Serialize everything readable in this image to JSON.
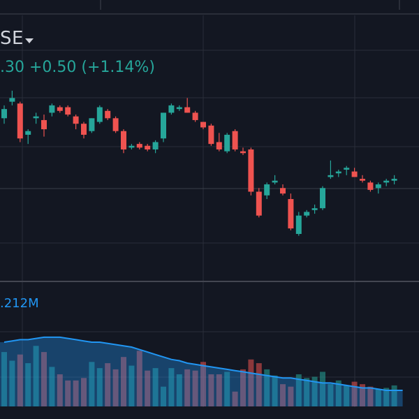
{
  "header": {
    "symbol_partial": "SE",
    "last_price_partial": ".30",
    "change": "+0.50",
    "change_pct": "(+1.14%)"
  },
  "volume": {
    "ma_value_partial": ".212M"
  },
  "colors": {
    "background": "#131722",
    "up": "#26a69a",
    "down": "#ef5350",
    "grid": "#2a2e39",
    "volume_ma": "#2196f3",
    "text": "#d1d4dc"
  },
  "chart_data": {
    "type": "candlestick",
    "price_ylim": [
      0,
      100
    ],
    "volume_ylim": [
      0,
      100
    ],
    "candles": [
      {
        "o": 63,
        "h": 70,
        "l": 60,
        "c": 68
      },
      {
        "o": 72,
        "h": 78,
        "l": 70,
        "c": 74
      },
      {
        "o": 71,
        "h": 72,
        "l": 50,
        "c": 52
      },
      {
        "o": 54,
        "h": 57,
        "l": 49,
        "c": 56
      },
      {
        "o": 63,
        "h": 66,
        "l": 60,
        "c": 64
      },
      {
        "o": 62,
        "h": 65,
        "l": 53,
        "c": 57
      },
      {
        "o": 66,
        "h": 71,
        "l": 64,
        "c": 70
      },
      {
        "o": 69,
        "h": 70,
        "l": 66,
        "c": 67
      },
      {
        "o": 69,
        "h": 70,
        "l": 64,
        "c": 65
      },
      {
        "o": 64,
        "h": 65,
        "l": 57,
        "c": 60
      },
      {
        "o": 60,
        "h": 61,
        "l": 52,
        "c": 54
      },
      {
        "o": 56,
        "h": 63,
        "l": 55,
        "c": 63
      },
      {
        "o": 61,
        "h": 70,
        "l": 60,
        "c": 69
      },
      {
        "o": 67,
        "h": 68,
        "l": 62,
        "c": 63
      },
      {
        "o": 63,
        "h": 64,
        "l": 55,
        "c": 56
      },
      {
        "o": 56,
        "h": 57,
        "l": 44,
        "c": 46
      },
      {
        "o": 47,
        "h": 49,
        "l": 46,
        "c": 48
      },
      {
        "o": 49,
        "h": 50,
        "l": 46,
        "c": 47
      },
      {
        "o": 48,
        "h": 49,
        "l": 45,
        "c": 46
      },
      {
        "o": 46,
        "h": 51,
        "l": 44,
        "c": 50
      },
      {
        "o": 52,
        "h": 66,
        "l": 50,
        "c": 66
      },
      {
        "o": 66,
        "h": 71,
        "l": 65,
        "c": 70
      },
      {
        "o": 68,
        "h": 70,
        "l": 67,
        "c": 69
      },
      {
        "o": 69,
        "h": 74,
        "l": 66,
        "c": 66
      },
      {
        "o": 66,
        "h": 67,
        "l": 61,
        "c": 62
      },
      {
        "o": 61,
        "h": 61,
        "l": 57,
        "c": 58
      },
      {
        "o": 59,
        "h": 60,
        "l": 48,
        "c": 49
      },
      {
        "o": 50,
        "h": 55,
        "l": 45,
        "c": 46
      },
      {
        "o": 45,
        "h": 55,
        "l": 44,
        "c": 54
      },
      {
        "o": 56,
        "h": 57,
        "l": 45,
        "c": 46
      },
      {
        "o": 45,
        "h": 47,
        "l": 43,
        "c": 44
      },
      {
        "o": 46,
        "h": 47,
        "l": 21,
        "c": 23
      },
      {
        "o": 23,
        "h": 25,
        "l": 9,
        "c": 10
      },
      {
        "o": 21,
        "h": 28,
        "l": 19,
        "c": 27
      },
      {
        "o": 28,
        "h": 32,
        "l": 27,
        "c": 29
      },
      {
        "o": 25,
        "h": 27,
        "l": 21,
        "c": 22
      },
      {
        "o": 19,
        "h": 22,
        "l": 2,
        "c": 3
      },
      {
        "o": 0,
        "h": 12,
        "l": -1,
        "c": 10
      },
      {
        "o": 10,
        "h": 13,
        "l": 9,
        "c": 12
      },
      {
        "o": 13,
        "h": 16,
        "l": 11,
        "c": 14
      },
      {
        "o": 14,
        "h": 26,
        "l": 13,
        "c": 25
      },
      {
        "o": 31,
        "h": 40,
        "l": 30,
        "c": 32
      },
      {
        "o": 33,
        "h": 35,
        "l": 31,
        "c": 34
      },
      {
        "o": 35,
        "h": 37,
        "l": 32,
        "c": 36
      },
      {
        "o": 34,
        "h": 36,
        "l": 31,
        "c": 31
      },
      {
        "o": 30,
        "h": 32,
        "l": 28,
        "c": 29
      },
      {
        "o": 28,
        "h": 29,
        "l": 23,
        "c": 24
      },
      {
        "o": 25,
        "h": 28,
        "l": 22,
        "c": 27
      },
      {
        "o": 28,
        "h": 30,
        "l": 26,
        "c": 29
      },
      {
        "o": 29,
        "h": 32,
        "l": 27,
        "c": 30
      }
    ],
    "volumes": [
      44,
      37,
      42,
      35,
      49,
      44,
      32,
      26,
      21,
      21,
      23,
      36,
      31,
      35,
      30,
      40,
      33,
      45,
      29,
      31,
      16,
      31,
      26,
      30,
      29,
      36,
      26,
      26,
      28,
      12,
      30,
      38,
      35,
      30,
      25,
      18,
      16,
      26,
      23,
      24,
      28,
      18,
      21,
      17,
      20,
      18,
      16,
      14,
      15,
      17
    ],
    "volume_ma": [
      52,
      53,
      54,
      54,
      55,
      56,
      56,
      56,
      55,
      54,
      53,
      52,
      52,
      51,
      50,
      49,
      48,
      46,
      44,
      42,
      40,
      38,
      37,
      35,
      34,
      33,
      32,
      31,
      30,
      29,
      28,
      27,
      26,
      25,
      24,
      23,
      23,
      22,
      21,
      20,
      19,
      19,
      18,
      17,
      16,
      15,
      15,
      14,
      13,
      13
    ]
  }
}
